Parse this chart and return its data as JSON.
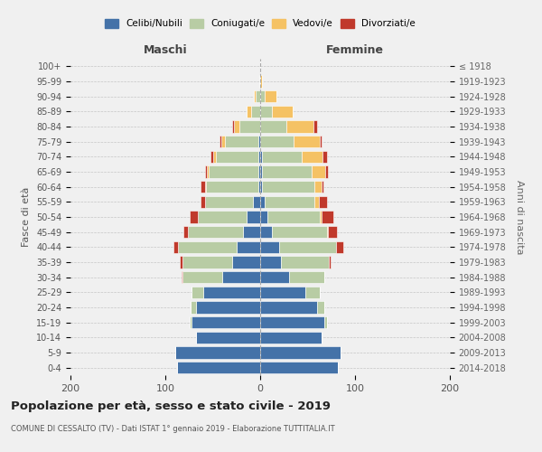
{
  "age_groups": [
    "0-4",
    "5-9",
    "10-14",
    "15-19",
    "20-24",
    "25-29",
    "30-34",
    "35-39",
    "40-44",
    "45-49",
    "50-54",
    "55-59",
    "60-64",
    "65-69",
    "70-74",
    "75-79",
    "80-84",
    "85-89",
    "90-94",
    "95-99",
    "100+"
  ],
  "birth_years": [
    "2014-2018",
    "2009-2013",
    "2004-2008",
    "1999-2003",
    "1994-1998",
    "1989-1993",
    "1984-1988",
    "1979-1983",
    "1974-1978",
    "1969-1973",
    "1964-1968",
    "1959-1963",
    "1954-1958",
    "1949-1953",
    "1944-1948",
    "1939-1943",
    "1934-1938",
    "1929-1933",
    "1924-1928",
    "1919-1923",
    "≤ 1918"
  ],
  "males_celibi": [
    88,
    90,
    68,
    72,
    68,
    60,
    40,
    30,
    25,
    18,
    14,
    8,
    2,
    2,
    2,
    2,
    0,
    0,
    0,
    0,
    0
  ],
  "males_coniugati": [
    0,
    0,
    0,
    2,
    5,
    12,
    42,
    52,
    62,
    58,
    52,
    50,
    55,
    52,
    45,
    35,
    22,
    10,
    5,
    1,
    0
  ],
  "males_vedovi": [
    0,
    0,
    0,
    0,
    0,
    0,
    0,
    0,
    0,
    0,
    0,
    0,
    1,
    2,
    3,
    4,
    6,
    4,
    2,
    0,
    0
  ],
  "males_divorziati": [
    0,
    0,
    0,
    0,
    0,
    0,
    1,
    3,
    4,
    5,
    8,
    5,
    5,
    2,
    2,
    2,
    2,
    0,
    0,
    0,
    0
  ],
  "females_nubili": [
    82,
    85,
    65,
    68,
    60,
    48,
    30,
    22,
    20,
    12,
    8,
    5,
    2,
    2,
    2,
    0,
    0,
    0,
    0,
    0,
    0
  ],
  "females_coniugate": [
    0,
    0,
    0,
    2,
    8,
    15,
    38,
    50,
    60,
    58,
    55,
    52,
    55,
    52,
    42,
    35,
    28,
    12,
    5,
    0,
    0
  ],
  "females_vedove": [
    0,
    0,
    0,
    0,
    0,
    0,
    0,
    0,
    0,
    1,
    2,
    5,
    8,
    15,
    22,
    28,
    28,
    22,
    12,
    2,
    0
  ],
  "females_divorziate": [
    0,
    0,
    0,
    0,
    0,
    0,
    0,
    2,
    8,
    10,
    12,
    8,
    2,
    2,
    4,
    2,
    4,
    0,
    0,
    0,
    0
  ],
  "colors": {
    "celibi": "#4472a8",
    "coniugati": "#b8cca4",
    "vedovi": "#f5c264",
    "divorziati": "#c0392b"
  },
  "title": "Popolazione per età, sesso e stato civile - 2019",
  "subtitle": "COMUNE DI CESSALTO (TV) - Dati ISTAT 1° gennaio 2019 - Elaborazione TUTTITALIA.IT",
  "ylabel_left": "Fasce di età",
  "ylabel_right": "Anni di nascita",
  "xlim": 200,
  "legend_labels": [
    "Celibi/Nubili",
    "Coniugati/e",
    "Vedovi/e",
    "Divorziati/e"
  ],
  "maschi_label": "Maschi",
  "femmine_label": "Femmine",
  "background_color": "#f0f0f0"
}
